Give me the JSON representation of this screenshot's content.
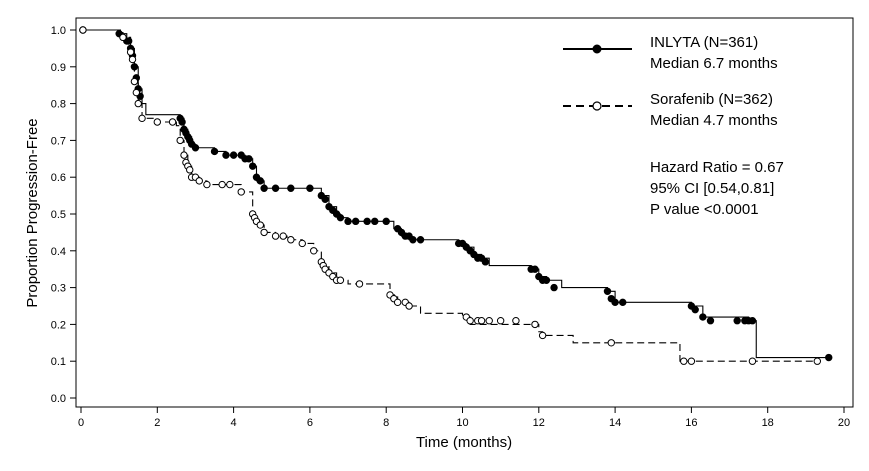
{
  "chart_data": {
    "type": "line",
    "subtype": "kaplan-meier",
    "xlabel": "Time (months)",
    "ylabel": "Proportion Progression-Free",
    "xlim": [
      0,
      20
    ],
    "ylim": [
      0.0,
      1.0
    ],
    "x_ticks": [
      0,
      2,
      4,
      6,
      8,
      10,
      12,
      14,
      16,
      18,
      20
    ],
    "y_ticks": [
      "0.0",
      "0.1",
      "0.2",
      "0.3",
      "0.4",
      "0.5",
      "0.6",
      "0.7",
      "0.8",
      "0.9",
      "1.0"
    ],
    "grid": false,
    "legend_position": "top-right",
    "series": [
      {
        "name": "INLYTA (N=361)",
        "median_label": "Median 6.7 months",
        "line_style": "solid",
        "marker": "filled-circle",
        "color": "#000000",
        "x": [
          0,
          1.0,
          1.2,
          1.3,
          1.4,
          1.5,
          1.6,
          1.7,
          2.6,
          2.7,
          2.8,
          2.9,
          3.0,
          3.5,
          3.8,
          4.0,
          4.3,
          4.5,
          4.6,
          4.8,
          6.2,
          6.3,
          6.5,
          6.7,
          6.8,
          7.0,
          8.2,
          8.4,
          8.6,
          8.9,
          9.9,
          10.1,
          10.3,
          10.5,
          10.7,
          11.8,
          12.0,
          12.2,
          12.6,
          13.8,
          14.0,
          16.0,
          16.3,
          17.5,
          17.7,
          19.6
        ],
        "y": [
          1.0,
          0.99,
          0.97,
          0.95,
          0.9,
          0.84,
          0.8,
          0.77,
          0.76,
          0.73,
          0.71,
          0.69,
          0.68,
          0.67,
          0.66,
          0.66,
          0.65,
          0.63,
          0.59,
          0.57,
          0.57,
          0.55,
          0.52,
          0.5,
          0.49,
          0.48,
          0.46,
          0.44,
          0.43,
          0.43,
          0.42,
          0.41,
          0.39,
          0.38,
          0.36,
          0.35,
          0.33,
          0.32,
          0.3,
          0.29,
          0.26,
          0.25,
          0.22,
          0.21,
          0.11,
          0.11
        ],
        "markers_x": [
          0.05,
          1.0,
          1.2,
          1.25,
          1.3,
          1.35,
          1.4,
          1.45,
          1.5,
          1.55,
          2.6,
          2.65,
          2.7,
          2.75,
          2.8,
          2.85,
          2.9,
          3.0,
          3.5,
          3.8,
          4.0,
          4.2,
          4.3,
          4.4,
          4.5,
          4.6,
          4.7,
          4.8,
          5.1,
          5.5,
          6.0,
          6.3,
          6.4,
          6.5,
          6.6,
          6.7,
          6.8,
          7.0,
          7.2,
          7.5,
          7.7,
          8.0,
          8.3,
          8.4,
          8.5,
          8.6,
          8.7,
          8.9,
          9.9,
          10.0,
          10.1,
          10.2,
          10.3,
          10.4,
          10.5,
          10.6,
          11.8,
          11.9,
          12.0,
          12.1,
          12.2,
          12.4,
          13.8,
          13.9,
          14.0,
          14.2,
          16.0,
          16.1,
          16.3,
          16.5,
          17.2,
          17.4,
          17.5,
          17.6,
          19.6
        ],
        "markers_y": [
          1.0,
          0.99,
          0.97,
          0.97,
          0.95,
          0.93,
          0.9,
          0.87,
          0.84,
          0.82,
          0.76,
          0.75,
          0.73,
          0.72,
          0.71,
          0.7,
          0.69,
          0.68,
          0.67,
          0.66,
          0.66,
          0.66,
          0.65,
          0.65,
          0.63,
          0.6,
          0.59,
          0.57,
          0.57,
          0.57,
          0.57,
          0.55,
          0.54,
          0.52,
          0.51,
          0.5,
          0.49,
          0.48,
          0.48,
          0.48,
          0.48,
          0.48,
          0.46,
          0.45,
          0.44,
          0.44,
          0.43,
          0.43,
          0.42,
          0.42,
          0.41,
          0.4,
          0.39,
          0.38,
          0.38,
          0.37,
          0.35,
          0.35,
          0.33,
          0.32,
          0.32,
          0.3,
          0.29,
          0.27,
          0.26,
          0.26,
          0.25,
          0.24,
          0.22,
          0.21,
          0.21,
          0.21,
          0.21,
          0.21,
          0.11
        ]
      },
      {
        "name": "Sorafenib (N=362)",
        "median_label": "Median 4.7 months",
        "line_style": "dashed",
        "marker": "open-circle",
        "color": "#000000",
        "x": [
          0,
          1.1,
          1.3,
          1.4,
          1.5,
          1.6,
          2.0,
          2.5,
          2.6,
          2.7,
          2.8,
          2.9,
          3.1,
          3.3,
          3.7,
          4.2,
          4.5,
          4.6,
          4.7,
          4.8,
          5.1,
          5.4,
          5.8,
          6.1,
          6.3,
          6.5,
          6.7,
          7.0,
          7.3,
          8.1,
          8.3,
          8.6,
          8.9,
          10.0,
          10.2,
          12.0,
          12.1,
          12.9,
          15.7,
          15.9,
          19.3
        ],
        "y": [
          1.0,
          0.98,
          0.94,
          0.86,
          0.8,
          0.76,
          0.75,
          0.74,
          0.7,
          0.66,
          0.63,
          0.6,
          0.59,
          0.58,
          0.58,
          0.56,
          0.5,
          0.48,
          0.47,
          0.45,
          0.44,
          0.43,
          0.42,
          0.4,
          0.36,
          0.34,
          0.32,
          0.31,
          0.31,
          0.28,
          0.26,
          0.25,
          0.23,
          0.22,
          0.2,
          0.18,
          0.17,
          0.15,
          0.1,
          0.1,
          0.1
        ],
        "markers_x": [
          0.05,
          1.1,
          1.3,
          1.35,
          1.4,
          1.45,
          1.5,
          1.6,
          2.0,
          2.4,
          2.6,
          2.7,
          2.75,
          2.8,
          2.85,
          2.9,
          3.0,
          3.1,
          3.3,
          3.7,
          3.9,
          4.2,
          4.5,
          4.55,
          4.6,
          4.7,
          4.8,
          5.1,
          5.3,
          5.5,
          5.8,
          6.1,
          6.3,
          6.35,
          6.4,
          6.5,
          6.6,
          6.7,
          6.8,
          7.3,
          8.1,
          8.2,
          8.3,
          8.5,
          8.6,
          10.1,
          10.2,
          10.4,
          10.5,
          10.7,
          11.0,
          11.4,
          11.9,
          12.1,
          13.9,
          15.8,
          16.0,
          17.6,
          19.3
        ],
        "markers_y": [
          1.0,
          0.98,
          0.94,
          0.92,
          0.86,
          0.83,
          0.8,
          0.76,
          0.75,
          0.75,
          0.7,
          0.66,
          0.64,
          0.63,
          0.62,
          0.6,
          0.6,
          0.59,
          0.58,
          0.58,
          0.58,
          0.56,
          0.5,
          0.49,
          0.48,
          0.47,
          0.45,
          0.44,
          0.44,
          0.43,
          0.42,
          0.4,
          0.37,
          0.36,
          0.35,
          0.34,
          0.33,
          0.32,
          0.32,
          0.31,
          0.28,
          0.27,
          0.26,
          0.26,
          0.25,
          0.22,
          0.21,
          0.21,
          0.21,
          0.21,
          0.21,
          0.21,
          0.2,
          0.17,
          0.15,
          0.1,
          0.1,
          0.1,
          0.1
        ]
      }
    ],
    "stats_text": [
      "Hazard Ratio = 0.67",
      "95% CI [0.54,0.81]",
      "P value <0.0001"
    ]
  }
}
